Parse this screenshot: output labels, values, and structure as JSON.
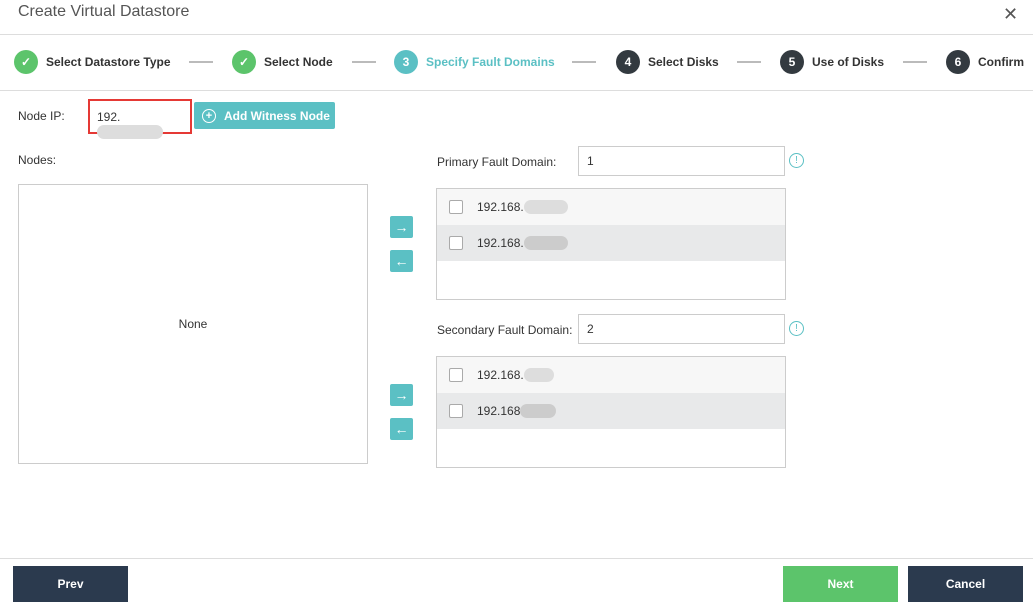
{
  "dialog": {
    "title": "Create Virtual Datastore",
    "close_icon": "close-icon"
  },
  "steps": [
    {
      "num": "1",
      "label": "Select Datastore Type",
      "state": "done"
    },
    {
      "num": "2",
      "label": "Select Node",
      "state": "done"
    },
    {
      "num": "3",
      "label": "Specify Fault Domains",
      "state": "current"
    },
    {
      "num": "4",
      "label": "Select Disks",
      "state": "todo"
    },
    {
      "num": "5",
      "label": "Use of Disks",
      "state": "todo"
    },
    {
      "num": "6",
      "label": "Confirm",
      "state": "todo"
    }
  ],
  "node_ip": {
    "label": "Node IP:",
    "value": "192."
  },
  "add_witness": "Add Witness Node",
  "nodes": {
    "label": "Nodes:",
    "empty": "None"
  },
  "primary": {
    "label": "Primary Fault Domain:",
    "value": "1",
    "items": [
      "192.168.",
      "192.168."
    ]
  },
  "secondary": {
    "label": "Secondary Fault Domain:",
    "value": "2",
    "items": [
      "192.168.",
      "192.168"
    ]
  },
  "footer": {
    "prev": "Prev",
    "next": "Next",
    "cancel": "Cancel"
  },
  "colors": {
    "accent": "#5bc0c4",
    "done": "#5cc46b",
    "dark": "#2b3a4e",
    "highlight": "#e53935"
  }
}
